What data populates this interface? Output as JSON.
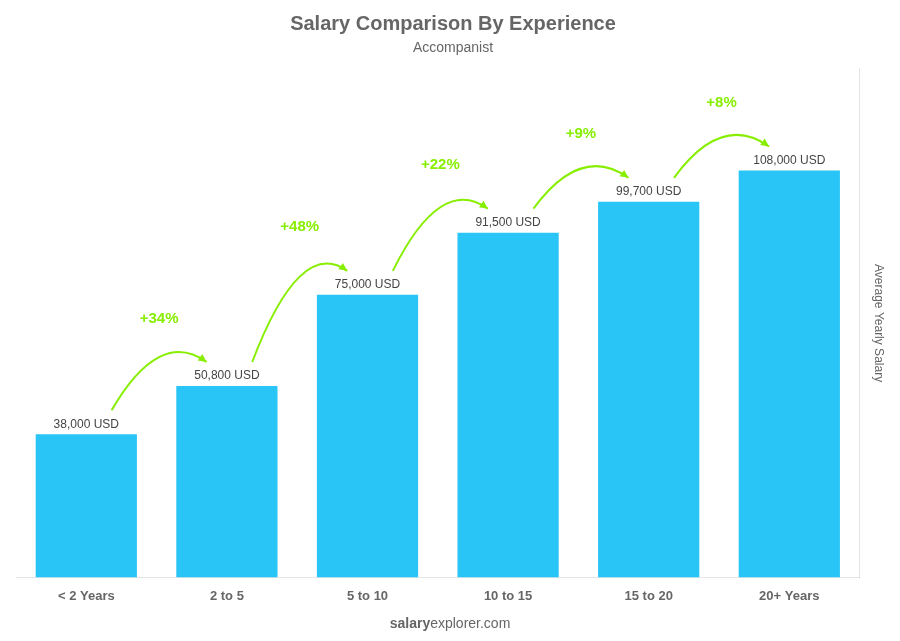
{
  "chart_data": {
    "type": "bar",
    "title": "Salary Comparison By Experience",
    "subtitle": "Accompanist",
    "ylabel": "Average Yearly Salary",
    "footer": [
      "salary",
      "explorer.com"
    ],
    "categories": [
      "< 2 Years",
      "2 to 5",
      "5 to 10",
      "10 to 15",
      "15 to 20",
      "20+ Years"
    ],
    "values": [
      38000,
      50800,
      75000,
      91500,
      99700,
      108000
    ],
    "value_labels": [
      "38,000 USD",
      "50,800 USD",
      "75,000 USD",
      "91,500 USD",
      "99,700 USD",
      "108,000 USD"
    ],
    "data_labels": true,
    "annotations": [
      {
        "text": "+34%",
        "color": "#88ee00"
      },
      {
        "text": "+48%",
        "color": "#88ee00"
      },
      {
        "text": "+22%",
        "color": "#88ee00"
      },
      {
        "text": "+9%",
        "color": "#88ee00"
      },
      {
        "text": "+8%",
        "color": "#88ee00"
      }
    ],
    "color": "#29c5f6",
    "ylim": [
      0,
      135000
    ],
    "tick_labels": "x",
    "grid": false
  }
}
